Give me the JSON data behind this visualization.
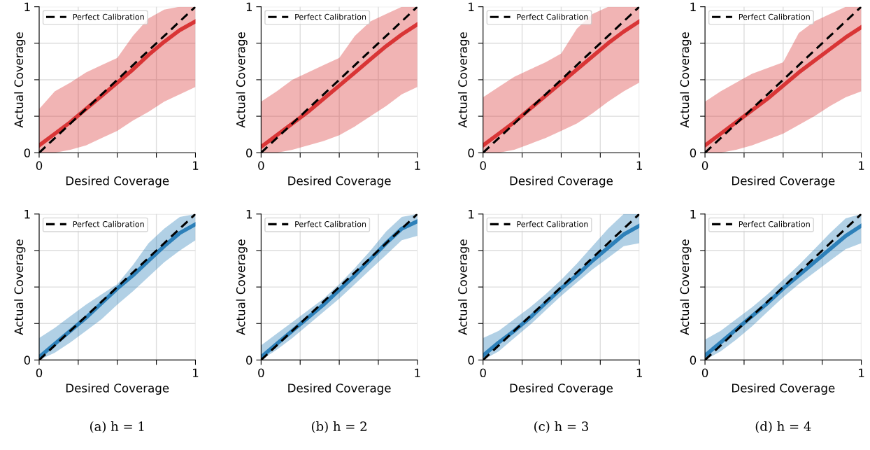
{
  "chart_data": [
    {
      "type": "line",
      "xlabel": "Desired Coverage",
      "ylabel": "Actual Coverage",
      "x": [
        0,
        0.1,
        0.2,
        0.3,
        0.4,
        0.5,
        0.6,
        0.7,
        0.8,
        0.9,
        1
      ],
      "xlim": [
        0,
        1
      ],
      "ylim": [
        0,
        1
      ],
      "xticks": [
        0,
        {
          "value": 0.25,
          "label": null
        },
        {
          "value": 0.5,
          "label": null
        },
        {
          "value": 0.75,
          "label": null
        },
        1
      ],
      "yticks": [
        0,
        {
          "value": 0.25,
          "label": null
        },
        {
          "value": 0.5,
          "label": null
        },
        {
          "value": 0.75,
          "label": null
        },
        1
      ],
      "grid": true,
      "legend": "top left",
      "marker": "none",
      "series": [
        {
          "color": "#d62728",
          "line_style": "solid",
          "values": [
            0.05,
            0.13,
            0.21,
            0.3,
            0.39,
            0.48,
            0.57,
            0.67,
            0.76,
            0.84,
            0.9
          ],
          "lower": [
            0,
            0,
            0.02,
            0.05,
            0.1,
            0.15,
            0.22,
            0.28,
            0.35,
            0.4,
            0.45
          ],
          "upper": [
            0.3,
            0.42,
            0.48,
            0.55,
            0.6,
            0.65,
            0.8,
            0.92,
            0.98,
            1,
            1
          ]
        },
        {
          "name": "Perfect Calibration",
          "color": "#000000",
          "line_style": "dashed",
          "values": [
            0,
            0.1,
            0.2,
            0.3,
            0.4,
            0.5,
            0.6,
            0.7,
            0.8,
            0.9,
            1
          ]
        }
      ]
    },
    {
      "type": "line",
      "xlabel": "Desired Coverage",
      "ylabel": "Actual Coverage",
      "x": [
        0,
        0.1,
        0.2,
        0.3,
        0.4,
        0.5,
        0.6,
        0.7,
        0.8,
        0.9,
        1
      ],
      "xlim": [
        0,
        1
      ],
      "ylim": [
        0,
        1
      ],
      "xticks": [
        0,
        {
          "value": 0.25,
          "label": null
        },
        {
          "value": 0.5,
          "label": null
        },
        {
          "value": 0.75,
          "label": null
        },
        1
      ],
      "yticks": [
        0,
        {
          "value": 0.25,
          "label": null
        },
        {
          "value": 0.5,
          "label": null
        },
        {
          "value": 0.75,
          "label": null
        },
        1
      ],
      "grid": true,
      "legend": "top left",
      "marker": "none",
      "series": [
        {
          "color": "#d62728",
          "line_style": "solid",
          "values": [
            0.04,
            0.12,
            0.2,
            0.28,
            0.37,
            0.46,
            0.55,
            0.64,
            0.73,
            0.81,
            0.88
          ],
          "lower": [
            0,
            0,
            0.02,
            0.05,
            0.08,
            0.12,
            0.18,
            0.25,
            0.32,
            0.4,
            0.45
          ],
          "upper": [
            0.35,
            0.42,
            0.5,
            0.55,
            0.6,
            0.65,
            0.8,
            0.9,
            0.95,
            1,
            1
          ]
        },
        {
          "name": "Perfect Calibration",
          "color": "#000000",
          "line_style": "dashed",
          "values": [
            0,
            0.1,
            0.2,
            0.3,
            0.4,
            0.5,
            0.6,
            0.7,
            0.8,
            0.9,
            1
          ]
        }
      ]
    },
    {
      "type": "line",
      "xlabel": "Desired Coverage",
      "ylabel": "Actual Coverage",
      "x": [
        0,
        0.1,
        0.2,
        0.3,
        0.4,
        0.5,
        0.6,
        0.7,
        0.8,
        0.9,
        1
      ],
      "xlim": [
        0,
        1
      ],
      "ylim": [
        0,
        1
      ],
      "xticks": [
        0,
        {
          "value": 0.25,
          "label": null
        },
        {
          "value": 0.5,
          "label": null
        },
        {
          "value": 0.75,
          "label": null
        },
        1
      ],
      "yticks": [
        0,
        {
          "value": 0.25,
          "label": null
        },
        {
          "value": 0.5,
          "label": null
        },
        {
          "value": 0.75,
          "label": null
        },
        1
      ],
      "grid": true,
      "legend": "top left",
      "marker": "none",
      "series": [
        {
          "color": "#d62728",
          "line_style": "solid",
          "values": [
            0.05,
            0.13,
            0.21,
            0.3,
            0.39,
            0.48,
            0.57,
            0.66,
            0.75,
            0.83,
            0.9
          ],
          "lower": [
            0,
            0,
            0.02,
            0.06,
            0.1,
            0.15,
            0.2,
            0.27,
            0.35,
            0.42,
            0.48
          ],
          "upper": [
            0.38,
            0.45,
            0.52,
            0.57,
            0.62,
            0.68,
            0.85,
            0.95,
            1,
            1,
            1
          ]
        },
        {
          "name": "Perfect Calibration",
          "color": "#000000",
          "line_style": "dashed",
          "values": [
            0,
            0.1,
            0.2,
            0.3,
            0.4,
            0.5,
            0.6,
            0.7,
            0.8,
            0.9,
            1
          ]
        }
      ]
    },
    {
      "type": "line",
      "xlabel": "Desired Coverage",
      "ylabel": "Actual Coverage",
      "x": [
        0,
        0.1,
        0.2,
        0.3,
        0.4,
        0.5,
        0.6,
        0.7,
        0.8,
        0.9,
        1
      ],
      "xlim": [
        0,
        1
      ],
      "ylim": [
        0,
        1
      ],
      "xticks": [
        0,
        {
          "value": 0.25,
          "label": null
        },
        {
          "value": 0.5,
          "label": null
        },
        {
          "value": 0.75,
          "label": null
        },
        1
      ],
      "yticks": [
        0,
        {
          "value": 0.25,
          "label": null
        },
        {
          "value": 0.5,
          "label": null
        },
        {
          "value": 0.75,
          "label": null
        },
        1
      ],
      "grid": true,
      "legend": "top left",
      "marker": "none",
      "series": [
        {
          "color": "#d62728",
          "line_style": "solid",
          "values": [
            0.05,
            0.13,
            0.21,
            0.29,
            0.37,
            0.46,
            0.55,
            0.63,
            0.71,
            0.79,
            0.86
          ],
          "lower": [
            0,
            0,
            0.02,
            0.05,
            0.09,
            0.13,
            0.19,
            0.25,
            0.32,
            0.38,
            0.42
          ],
          "upper": [
            0.35,
            0.42,
            0.48,
            0.54,
            0.58,
            0.62,
            0.82,
            0.9,
            0.95,
            1,
            1
          ]
        },
        {
          "name": "Perfect Calibration",
          "color": "#000000",
          "line_style": "dashed",
          "values": [
            0,
            0.1,
            0.2,
            0.3,
            0.4,
            0.5,
            0.6,
            0.7,
            0.8,
            0.9,
            1
          ]
        }
      ]
    },
    {
      "type": "line",
      "xlabel": "Desired Coverage",
      "ylabel": "Actual Coverage",
      "annotations": [
        "(a) h = 1"
      ],
      "x": [
        0,
        0.1,
        0.2,
        0.3,
        0.4,
        0.5,
        0.6,
        0.7,
        0.8,
        0.9,
        1
      ],
      "xlim": [
        0,
        1
      ],
      "ylim": [
        0,
        1
      ],
      "xticks": [
        0,
        {
          "value": 0.25,
          "label": null
        },
        {
          "value": 0.5,
          "label": null
        },
        {
          "value": 0.75,
          "label": null
        },
        1
      ],
      "yticks": [
        0,
        {
          "value": 0.25,
          "label": null
        },
        {
          "value": 0.5,
          "label": null
        },
        {
          "value": 0.75,
          "label": null
        },
        1
      ],
      "grid": true,
      "legend": "top left",
      "marker": "none",
      "series": [
        {
          "color": "#1f77b4",
          "line_style": "solid",
          "values": [
            0.02,
            0.11,
            0.2,
            0.29,
            0.39,
            0.49,
            0.58,
            0.68,
            0.78,
            0.87,
            0.93
          ],
          "lower": [
            0,
            0.05,
            0.12,
            0.2,
            0.28,
            0.38,
            0.47,
            0.57,
            0.67,
            0.75,
            0.82
          ],
          "upper": [
            0.15,
            0.22,
            0.3,
            0.38,
            0.45,
            0.52,
            0.65,
            0.8,
            0.9,
            0.98,
            1
          ]
        },
        {
          "name": "Perfect Calibration",
          "color": "#000000",
          "line_style": "dashed",
          "values": [
            0,
            0.1,
            0.2,
            0.3,
            0.4,
            0.5,
            0.6,
            0.7,
            0.8,
            0.9,
            1
          ]
        }
      ]
    },
    {
      "type": "line",
      "xlabel": "Desired Coverage",
      "ylabel": "Actual Coverage",
      "annotations": [
        "(b) h = 2"
      ],
      "x": [
        0,
        0.1,
        0.2,
        0.3,
        0.4,
        0.5,
        0.6,
        0.7,
        0.8,
        0.9,
        1
      ],
      "xlim": [
        0,
        1
      ],
      "ylim": [
        0,
        1
      ],
      "xticks": [
        0,
        {
          "value": 0.25,
          "label": null
        },
        {
          "value": 0.5,
          "label": null
        },
        {
          "value": 0.75,
          "label": null
        },
        1
      ],
      "yticks": [
        0,
        {
          "value": 0.25,
          "label": null
        },
        {
          "value": 0.5,
          "label": null
        },
        {
          "value": 0.75,
          "label": null
        },
        1
      ],
      "grid": true,
      "legend": "top left",
      "marker": "none",
      "series": [
        {
          "color": "#1f77b4",
          "line_style": "solid",
          "values": [
            0.02,
            0.11,
            0.2,
            0.29,
            0.38,
            0.48,
            0.58,
            0.69,
            0.8,
            0.9,
            0.95
          ],
          "lower": [
            0,
            0.07,
            0.15,
            0.24,
            0.33,
            0.42,
            0.52,
            0.62,
            0.72,
            0.82,
            0.85
          ],
          "upper": [
            0.1,
            0.18,
            0.26,
            0.34,
            0.42,
            0.52,
            0.63,
            0.75,
            0.88,
            0.98,
            1
          ]
        },
        {
          "name": "Perfect Calibration",
          "color": "#000000",
          "line_style": "dashed",
          "values": [
            0,
            0.1,
            0.2,
            0.3,
            0.4,
            0.5,
            0.6,
            0.7,
            0.8,
            0.9,
            1
          ]
        }
      ]
    },
    {
      "type": "line",
      "xlabel": "Desired Coverage",
      "ylabel": "Actual Coverage",
      "annotations": [
        "(c) h = 3"
      ],
      "x": [
        0,
        0.1,
        0.2,
        0.3,
        0.4,
        0.5,
        0.6,
        0.7,
        0.8,
        0.9,
        1
      ],
      "xlim": [
        0,
        1
      ],
      "ylim": [
        0,
        1
      ],
      "xticks": [
        0,
        {
          "value": 0.25,
          "label": null
        },
        {
          "value": 0.5,
          "label": null
        },
        {
          "value": 0.75,
          "label": null
        },
        1
      ],
      "yticks": [
        0,
        {
          "value": 0.25,
          "label": null
        },
        {
          "value": 0.5,
          "label": null
        },
        {
          "value": 0.75,
          "label": null
        },
        1
      ],
      "grid": true,
      "legend": "top left",
      "marker": "none",
      "series": [
        {
          "color": "#1f77b4",
          "line_style": "solid",
          "values": [
            0.03,
            0.12,
            0.2,
            0.29,
            0.39,
            0.49,
            0.58,
            0.68,
            0.77,
            0.86,
            0.92
          ],
          "lower": [
            0,
            0.06,
            0.15,
            0.24,
            0.34,
            0.44,
            0.53,
            0.62,
            0.7,
            0.78,
            0.8
          ],
          "upper": [
            0.15,
            0.2,
            0.28,
            0.36,
            0.45,
            0.55,
            0.66,
            0.78,
            0.9,
            1,
            1
          ]
        },
        {
          "name": "Perfect Calibration",
          "color": "#000000",
          "line_style": "dashed",
          "values": [
            0,
            0.1,
            0.2,
            0.3,
            0.4,
            0.5,
            0.6,
            0.7,
            0.8,
            0.9,
            1
          ]
        }
      ]
    },
    {
      "type": "line",
      "xlabel": "Desired Coverage",
      "ylabel": "Actual Coverage",
      "annotations": [
        "(d) h = 4"
      ],
      "x": [
        0,
        0.1,
        0.2,
        0.3,
        0.4,
        0.5,
        0.6,
        0.7,
        0.8,
        0.9,
        1
      ],
      "xlim": [
        0,
        1
      ],
      "ylim": [
        0,
        1
      ],
      "xticks": [
        0,
        {
          "value": 0.25,
          "label": null
        },
        {
          "value": 0.5,
          "label": null
        },
        {
          "value": 0.75,
          "label": null
        },
        1
      ],
      "yticks": [
        0,
        {
          "value": 0.25,
          "label": null
        },
        {
          "value": 0.5,
          "label": null
        },
        {
          "value": 0.75,
          "label": null
        },
        1
      ],
      "grid": true,
      "legend": "top left",
      "marker": "none",
      "series": [
        {
          "color": "#1f77b4",
          "line_style": "solid",
          "values": [
            0.03,
            0.12,
            0.21,
            0.3,
            0.39,
            0.49,
            0.58,
            0.67,
            0.76,
            0.85,
            0.92
          ],
          "lower": [
            0,
            0.06,
            0.14,
            0.23,
            0.33,
            0.43,
            0.52,
            0.6,
            0.68,
            0.76,
            0.8
          ],
          "upper": [
            0.14,
            0.2,
            0.28,
            0.36,
            0.45,
            0.55,
            0.65,
            0.76,
            0.87,
            0.97,
            1
          ]
        },
        {
          "name": "Perfect Calibration",
          "color": "#000000",
          "line_style": "dashed",
          "values": [
            0,
            0.1,
            0.2,
            0.3,
            0.4,
            0.5,
            0.6,
            0.7,
            0.8,
            0.9,
            1
          ]
        }
      ]
    }
  ]
}
